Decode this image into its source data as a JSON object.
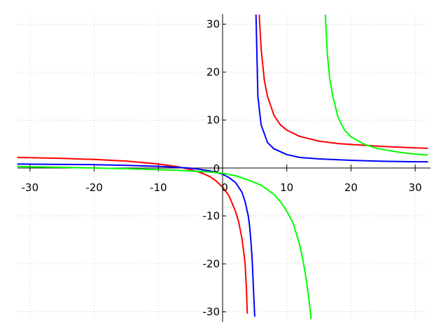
{
  "chart_data": {
    "type": "line",
    "title": "",
    "xlabel": "",
    "ylabel": "",
    "xlim": [
      -32,
      32
    ],
    "ylim": [
      -32,
      32
    ],
    "grid": true,
    "xticks": [
      -30,
      -20,
      -10,
      0,
      10,
      20,
      30
    ],
    "yticks": [
      -30,
      -20,
      -10,
      0,
      10,
      20,
      30
    ],
    "xtick_labels": [
      "-30",
      "-20",
      "-10",
      "0",
      "10",
      "20",
      "30"
    ],
    "ytick_labels": [
      "-30",
      "-20",
      "-10",
      "0",
      "10",
      "20",
      "30"
    ],
    "series": [
      {
        "color": "#ff0000",
        "x": [
          -32,
          -30,
          -25,
          -20,
          -15,
          -10,
          -7,
          -5,
          -4,
          -3,
          -2,
          -1,
          0,
          1,
          2,
          2.5,
          3,
          3.3,
          3.5,
          3.7,
          3.85,
          5.7,
          6,
          6.5,
          7,
          8,
          9,
          10,
          12,
          15,
          18,
          20,
          25,
          30,
          32
        ],
        "y": [
          2.2,
          2.14,
          2.0,
          1.78,
          1.45,
          0.85,
          0.28,
          -0.33,
          -0.7,
          -1.17,
          -1.8,
          -2.7,
          -4.0,
          -5.8,
          -9.0,
          -11.2,
          -14.6,
          -17.6,
          -20.0,
          -24.7,
          -30.4,
          32.0,
          25.0,
          18.3,
          14.9,
          11.0,
          9.0,
          7.9,
          6.6,
          5.6,
          5.1,
          4.9,
          4.5,
          4.2,
          4.1
        ]
      },
      {
        "color": "#0000ff",
        "x": [
          -32,
          -30,
          -25,
          -20,
          -15,
          -10,
          -7,
          -5,
          -4,
          -3,
          -2,
          -1,
          0,
          1,
          2,
          3,
          3.5,
          4,
          4.2,
          4.4,
          4.6,
          4.8,
          5.0,
          5.2,
          5.5,
          6,
          7,
          8,
          10,
          12,
          15,
          20,
          25,
          30,
          32
        ],
        "y": [
          0.82,
          0.8,
          0.75,
          0.7,
          0.55,
          0.35,
          0.15,
          -0.05,
          -0.2,
          -0.4,
          -0.6,
          -0.9,
          -1.3,
          -2.0,
          -3.0,
          -5.0,
          -7.0,
          -10.0,
          -12.0,
          -15.0,
          -19.0,
          -25.0,
          -31.0,
          32.0,
          15.0,
          9.0,
          5.3,
          4.0,
          2.8,
          2.2,
          1.9,
          1.6,
          1.4,
          1.3,
          1.3
        ]
      },
      {
        "color": "#00ff00",
        "x": [
          -32,
          -30,
          -25,
          -20,
          -15,
          -10,
          -5,
          -2,
          0,
          2,
          4,
          6,
          8,
          9,
          10,
          11,
          12,
          12.5,
          13,
          13.5,
          13.8,
          16.0,
          16.3,
          16.7,
          17.2,
          18,
          19,
          20,
          22,
          24,
          26,
          28,
          30,
          32
        ],
        "y": [
          0.3,
          0.25,
          0.15,
          0.0,
          -0.15,
          -0.35,
          -0.6,
          -0.85,
          -1.1,
          -1.6,
          -2.5,
          -3.6,
          -5.5,
          -7.0,
          -9.0,
          -11.5,
          -16.0,
          -19.0,
          -23.0,
          -28.0,
          -31.5,
          32.0,
          24.0,
          18.5,
          14.8,
          10.5,
          7.9,
          6.5,
          5.0,
          4.1,
          3.6,
          3.2,
          2.9,
          2.7
        ]
      }
    ]
  }
}
